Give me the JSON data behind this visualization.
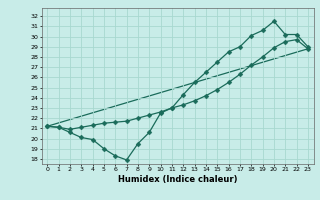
{
  "xlabel": "Humidex (Indice chaleur)",
  "bg_color": "#c8ece8",
  "grid_color": "#a8d8d0",
  "line_color": "#1a6b5a",
  "x_ticks": [
    0,
    1,
    2,
    3,
    4,
    5,
    6,
    7,
    8,
    9,
    10,
    11,
    12,
    13,
    14,
    15,
    16,
    17,
    18,
    19,
    20,
    21,
    22,
    23
  ],
  "y_ticks": [
    18,
    19,
    20,
    21,
    22,
    23,
    24,
    25,
    26,
    27,
    28,
    29,
    30,
    31,
    32
  ],
  "xlim": [
    -0.5,
    23.5
  ],
  "ylim": [
    17.5,
    32.8
  ],
  "line1_x": [
    0,
    1,
    2,
    3,
    4,
    5,
    6,
    7,
    8,
    9,
    10,
    11,
    12,
    13,
    14,
    15,
    16,
    17,
    18,
    19,
    20,
    21,
    22,
    23
  ],
  "line1_y": [
    21.2,
    21.1,
    20.6,
    20.1,
    19.9,
    19.0,
    18.3,
    17.9,
    19.5,
    20.6,
    22.5,
    23.0,
    24.3,
    25.5,
    26.5,
    27.5,
    28.5,
    29.0,
    30.1,
    30.6,
    31.5,
    30.2,
    30.2,
    29.0
  ],
  "line2_x": [
    0,
    1,
    2,
    3,
    4,
    5,
    6,
    7,
    8,
    9,
    10,
    11,
    12,
    13,
    14,
    15,
    16,
    17,
    18,
    19,
    20,
    21,
    22,
    23
  ],
  "line2_y": [
    21.2,
    21.1,
    20.9,
    21.1,
    21.3,
    21.5,
    21.6,
    21.7,
    22.0,
    22.3,
    22.6,
    23.0,
    23.3,
    23.7,
    24.2,
    24.8,
    25.5,
    26.3,
    27.2,
    28.0,
    28.9,
    29.5,
    29.7,
    28.8
  ],
  "line3_x": [
    0,
    23
  ],
  "line3_y": [
    21.2,
    28.8
  ],
  "xlabel_fontsize": 6,
  "tick_fontsize": 4.5,
  "marker_size": 2.5,
  "line_width": 0.9
}
